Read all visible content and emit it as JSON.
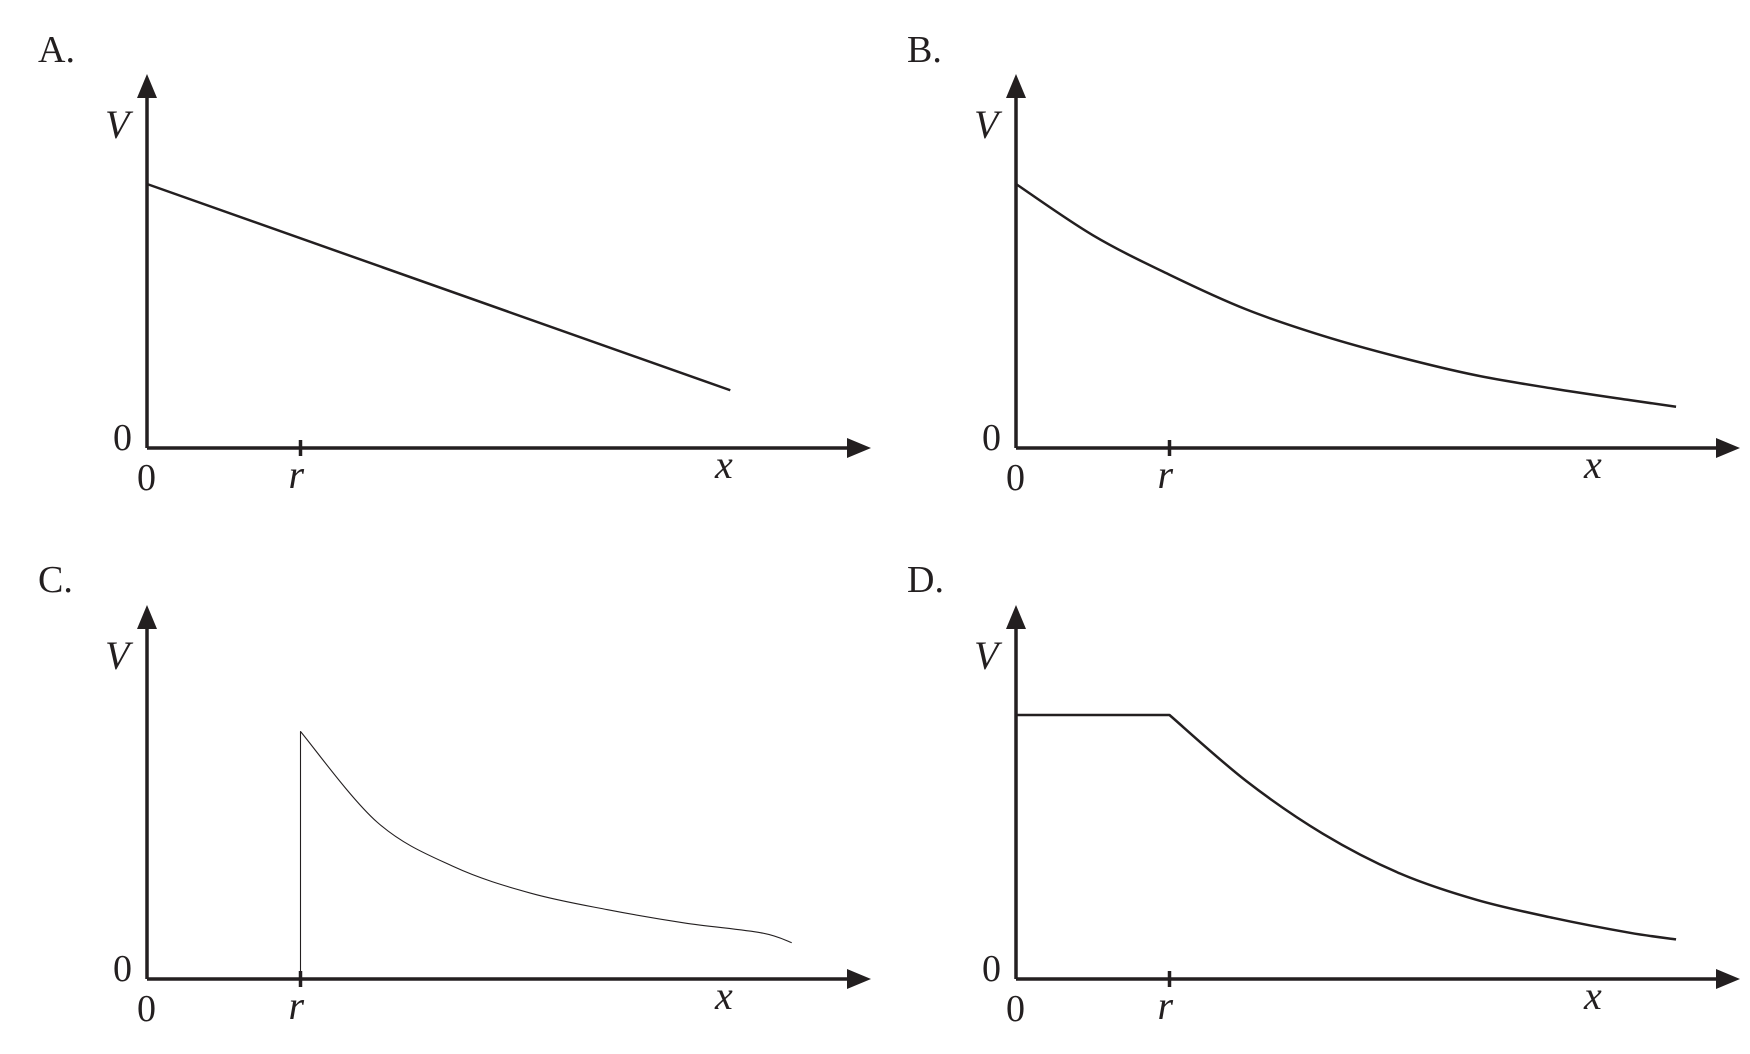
{
  "panels": [
    {
      "label": "A.",
      "y_axis_label": "V",
      "x_axis_label": "x",
      "y_origin_label": "0",
      "x_origin_label": "0",
      "r_label": "r"
    },
    {
      "label": "B.",
      "y_axis_label": "V",
      "x_axis_label": "x",
      "y_origin_label": "0",
      "x_origin_label": "0",
      "r_label": "r"
    },
    {
      "label": "C.",
      "y_axis_label": "V",
      "x_axis_label": "x",
      "y_origin_label": "0",
      "x_origin_label": "0",
      "r_label": "r"
    },
    {
      "label": "D.",
      "y_axis_label": "V",
      "x_axis_label": "x",
      "y_origin_label": "0",
      "x_origin_label": "0",
      "r_label": "r"
    }
  ],
  "colors": {
    "ink": "#231f20",
    "background": "#ffffff"
  },
  "chart_data": [
    {
      "type": "line",
      "title": "A.",
      "xlabel": "x",
      "ylabel": "V",
      "x_ticks": [
        0,
        1
      ],
      "x_tick_labels": [
        "0",
        "r"
      ],
      "y_ticks": [
        0
      ],
      "y_tick_labels": [
        "0"
      ],
      "xlim": [
        0,
        4.55
      ],
      "ylim": [
        0,
        2.1
      ],
      "grid": false,
      "series": [
        {
          "shape": "linear",
          "x": [
            0,
            3.8
          ],
          "y": [
            1.6,
            0.35
          ]
        }
      ]
    },
    {
      "type": "line",
      "title": "B.",
      "xlabel": "x",
      "ylabel": "V",
      "x_ticks": [
        0,
        1
      ],
      "x_tick_labels": [
        "0",
        "r"
      ],
      "y_ticks": [
        0
      ],
      "y_tick_labels": [
        "0"
      ],
      "xlim": [
        0,
        4.55
      ],
      "ylim": [
        0,
        2.1
      ],
      "grid": false,
      "series": [
        {
          "shape": "exponential-decay",
          "x": [
            0,
            0.5,
            1,
            1.5,
            2,
            2.5,
            3,
            3.5,
            4,
            4.3
          ],
          "y": [
            1.6,
            1.29,
            1.05,
            0.84,
            0.68,
            0.55,
            0.44,
            0.36,
            0.29,
            0.25
          ]
        }
      ]
    },
    {
      "type": "line",
      "title": "C.",
      "xlabel": "x",
      "ylabel": "V",
      "x_ticks": [
        0,
        1
      ],
      "x_tick_labels": [
        "0",
        "r"
      ],
      "y_ticks": [
        0
      ],
      "y_tick_labels": [
        "0"
      ],
      "xlim": [
        0,
        4.55
      ],
      "ylim": [
        0,
        2.1
      ],
      "grid": false,
      "series": [
        {
          "shape": "drop-at-r-then-1/x",
          "x": [
            1,
            1,
            1.5,
            2,
            2.5,
            3,
            3.5,
            4,
            4.2
          ],
          "y": [
            0,
            1.5,
            0.95,
            0.68,
            0.52,
            0.42,
            0.34,
            0.28,
            0.22
          ]
        }
      ]
    },
    {
      "type": "line",
      "title": "D.",
      "xlabel": "x",
      "ylabel": "V",
      "x_ticks": [
        0,
        1
      ],
      "x_tick_labels": [
        "0",
        "r"
      ],
      "y_ticks": [
        0
      ],
      "y_tick_labels": [
        "0"
      ],
      "xlim": [
        0,
        4.55
      ],
      "ylim": [
        0,
        2.1
      ],
      "grid": false,
      "series": [
        {
          "shape": "constant-then-decay",
          "x": [
            0,
            1,
            1.5,
            2,
            2.5,
            3,
            3.5,
            4,
            4.3
          ],
          "y": [
            1.6,
            1.6,
            1.2,
            0.88,
            0.64,
            0.48,
            0.37,
            0.28,
            0.24
          ]
        }
      ]
    }
  ]
}
